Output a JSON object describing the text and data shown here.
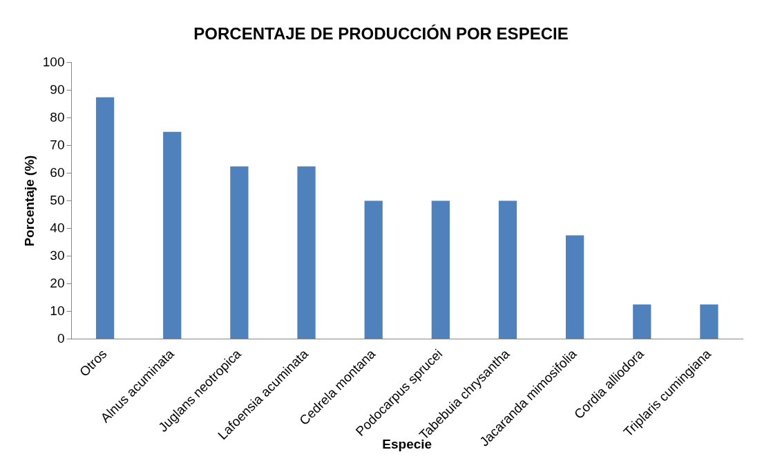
{
  "chart_data": {
    "type": "bar",
    "title": "PORCENTAJE DE PRODUCCIÓN POR ESPECIE",
    "xlabel": "Especie",
    "ylabel": "Porcentaje (%)",
    "categories": [
      "Otros",
      "Alnus acuminata",
      "Juglans neotropica",
      "Lafoensia acuminata",
      "Cedrela montana",
      "Podocarpus sprucei",
      "Tabebuia chrysantha",
      "Jacaranda mimosifolia",
      "Cordia alliodora",
      "Triplaris cumingiana"
    ],
    "values": [
      87.5,
      75,
      62.5,
      62.5,
      50,
      50,
      50,
      37.5,
      12.5,
      12.5
    ],
    "color": "#4f81bd",
    "ylim": [
      0,
      100
    ],
    "yticks": [
      0,
      10,
      20,
      30,
      40,
      50,
      60,
      70,
      80,
      90,
      100
    ],
    "grid": false,
    "legend": false
  }
}
